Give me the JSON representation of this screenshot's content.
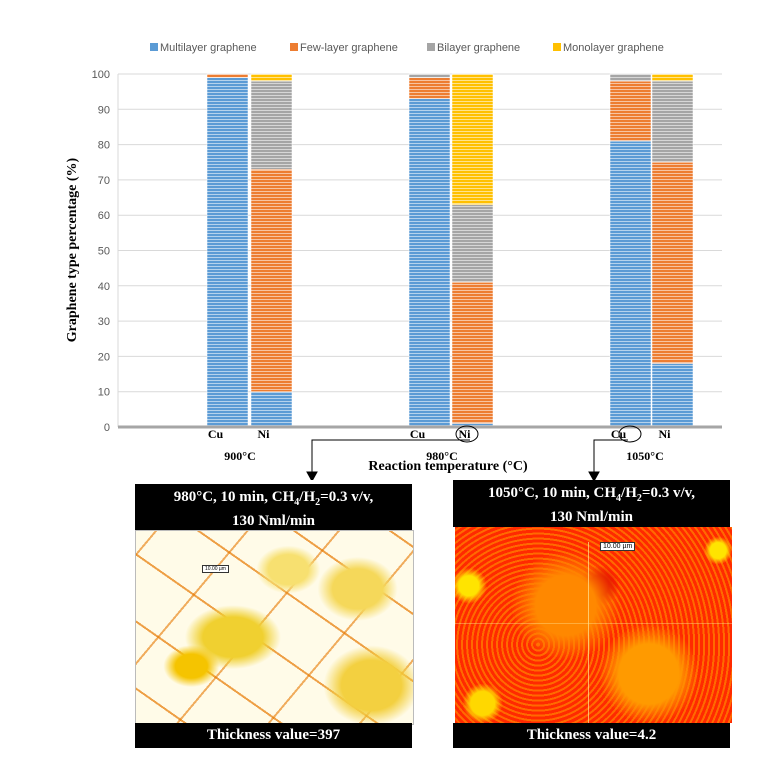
{
  "chart_data": {
    "type": "bar",
    "stacked": true,
    "title": "",
    "xlabel": "Reaction temperature (°C)",
    "ylabel": "Graphene type percentage (%)",
    "ylim": [
      0,
      100
    ],
    "yticks": [
      "0",
      "10",
      "20",
      "30",
      "40",
      "50",
      "60",
      "70",
      "80",
      "90",
      "100"
    ],
    "grid": true,
    "legend_position": "top",
    "groups": [
      "900°C",
      "980°C",
      "1050°C"
    ],
    "categories": [
      "Cu",
      "Ni",
      "Cu",
      "Ni",
      "Cu",
      "Ni"
    ],
    "series": [
      {
        "name": "Multilayer graphene",
        "color": "#5b9bd5",
        "values": [
          99,
          10,
          93,
          1,
          81,
          18
        ]
      },
      {
        "name": "Few-layer graphene",
        "color": "#ed7d31",
        "values": [
          1,
          63,
          6,
          40,
          17,
          57
        ]
      },
      {
        "name": "Bilayer graphene",
        "color": "#a5a5a5",
        "values": [
          0,
          25,
          1,
          22,
          2,
          23
        ]
      },
      {
        "name": "Monolayer graphene",
        "color": "#ffc000",
        "values": [
          0,
          2,
          0,
          37,
          0,
          2
        ]
      }
    ]
  },
  "panels": [
    {
      "header_line1": "980°C, 10 min, CH",
      "sub4": "4",
      "mid": "/H",
      "sub2": "2",
      "header_rest": "=0.3 v/v,",
      "header_line2": "130 Nml/min",
      "scale": "10.00 µm",
      "footer": "Thickness value=397"
    },
    {
      "header_line1": "1050°C, 10 min, CH",
      "sub4": "4",
      "mid": "/H",
      "sub2": "2",
      "header_rest": "=0.3 v/v,",
      "header_line2": "130 Nml/min",
      "scale": "10.00 µm",
      "footer": "Thickness value=4.2"
    }
  ]
}
